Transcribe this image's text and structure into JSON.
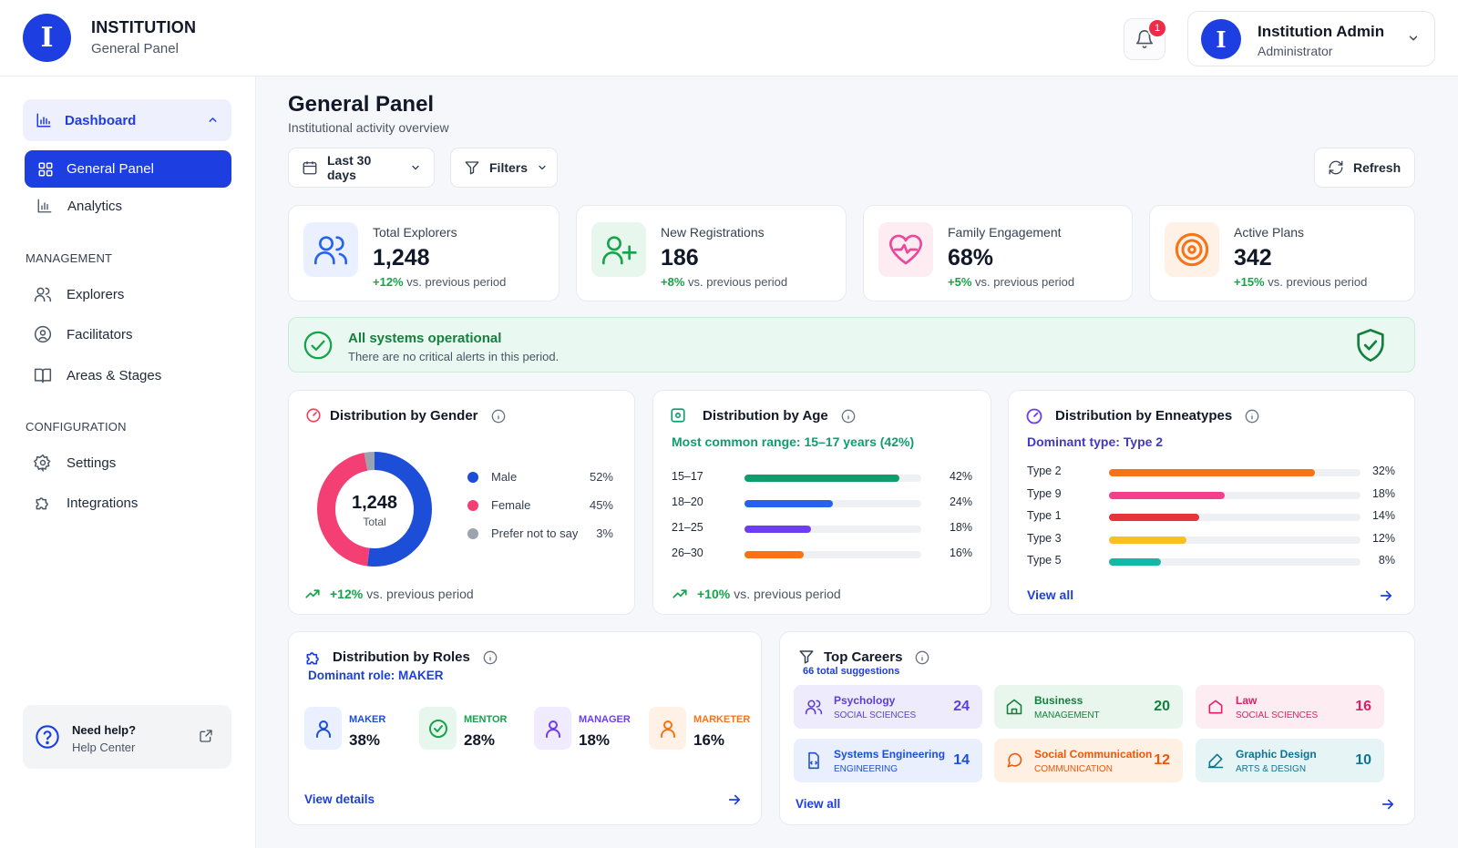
{
  "header": {
    "logo_letter": "I",
    "brand_title": "INSTITUTION",
    "brand_subtitle": "General Panel",
    "notification_count": "1",
    "user": {
      "avatar_letter": "I",
      "name": "Institution Admin",
      "role": "Administrator"
    }
  },
  "sidebar": {
    "group": {
      "label": "Dashboard"
    },
    "items": [
      {
        "label": "General Panel"
      },
      {
        "label": "Analytics"
      }
    ],
    "management_title": "MANAGEMENT",
    "management": [
      {
        "label": "Explorers"
      },
      {
        "label": "Facilitators"
      },
      {
        "label": "Areas & Stages"
      }
    ],
    "configuration_title": "CONFIGURATION",
    "configuration": [
      {
        "label": "Settings"
      },
      {
        "label": "Integrations"
      }
    ],
    "help": {
      "title": "Need help?",
      "subtitle": "Help Center"
    }
  },
  "main": {
    "title": "General Panel",
    "subtitle": "Institutional activity overview",
    "toolbar": {
      "date_range": "Last 30 days",
      "filters": "Filters",
      "refresh": "Refresh"
    },
    "kpis": [
      {
        "label": "Total Explorers",
        "value": "1,248",
        "delta": "+12%",
        "delta_text": "vs. previous period",
        "color": "#2563eb"
      },
      {
        "label": "New Registrations",
        "value": "186",
        "delta": "+8%",
        "delta_text": "vs. previous period",
        "color": "#16a34a"
      },
      {
        "label": "Family Engagement",
        "value": "68%",
        "delta": "+5%",
        "delta_text": "vs. previous period",
        "color": "#ec4899"
      },
      {
        "label": "Active Plans",
        "value": "342",
        "delta": "+15%",
        "delta_text": "vs. previous period",
        "color": "#f97316"
      }
    ],
    "alert": {
      "title": "All systems operational",
      "subtitle": "There are no critical alerts in this period."
    },
    "gender": {
      "title": "Distribution by Gender",
      "total": "1,248",
      "total_label": "Total",
      "trend": "+12%",
      "trend_text": "vs. previous period",
      "segments": [
        {
          "label": "Male",
          "value": "52%",
          "pct": 52,
          "color": "#1d4ed8"
        },
        {
          "label": "Female",
          "value": "45%",
          "pct": 45,
          "color": "#f43f75"
        },
        {
          "label": "Prefer not to say",
          "value": "3%",
          "pct": 3,
          "color": "#9ca3af"
        }
      ]
    },
    "age": {
      "title": "Distribution by Age",
      "subtitle": "Most common range: 15–17 years (42%)",
      "trend": "+10%",
      "trend_text": "vs. previous period",
      "rows": [
        {
          "label": "15–17",
          "value": "42%",
          "pct": 42,
          "color": "#0f9d6e"
        },
        {
          "label": "18–20",
          "value": "24%",
          "pct": 24,
          "color": "#2563eb"
        },
        {
          "label": "21–25",
          "value": "18%",
          "pct": 18,
          "color": "#6d3df2"
        },
        {
          "label": "26–30",
          "value": "16%",
          "pct": 16,
          "color": "#f97316"
        }
      ]
    },
    "enneatypes": {
      "title": "Distribution by Enneatypes",
      "subtitle": "Dominant type: Type 2",
      "link": "View all",
      "rows": [
        {
          "label": "Type 2",
          "value": "32%",
          "pct": 32,
          "color": "#f97316"
        },
        {
          "label": "Type 9",
          "value": "18%",
          "pct": 18,
          "color": "#f43f8e"
        },
        {
          "label": "Type 1",
          "value": "14%",
          "pct": 14,
          "color": "#e5343a"
        },
        {
          "label": "Type 3",
          "value": "12%",
          "pct": 12,
          "color": "#fbbf24"
        },
        {
          "label": "Type 5",
          "value": "8%",
          "pct": 8,
          "color": "#14b8a6"
        }
      ]
    },
    "roles": {
      "title": "Distribution by Roles",
      "subtitle": "Dominant role: MAKER",
      "link": "View details",
      "items": [
        {
          "label": "MAKER",
          "value": "38%",
          "color": "#1d4ed8",
          "bg": "#eaf0ff"
        },
        {
          "label": "MENTOR",
          "value": "28%",
          "color": "#16a34a",
          "bg": "#e8f7ee"
        },
        {
          "label": "MANAGER",
          "value": "18%",
          "color": "#6d3df2",
          "bg": "#f0ebff"
        },
        {
          "label": "MARKETER",
          "value": "16%",
          "color": "#f97316",
          "bg": "#fff1e6"
        }
      ]
    },
    "careers": {
      "title": "Top Careers",
      "subtitle": "66 total suggestions",
      "link": "View all",
      "items": [
        {
          "name": "Psychology",
          "category": "SOCIAL SCIENCES",
          "count": "24",
          "color": "#5b3fd6",
          "bg": "#eeebfd"
        },
        {
          "name": "Business",
          "category": "MANAGEMENT",
          "count": "20",
          "color": "#15803d",
          "bg": "#e8f6ee"
        },
        {
          "name": "Law",
          "category": "SOCIAL SCIENCES",
          "count": "16",
          "color": "#e11d63",
          "bg": "#fdecf2"
        },
        {
          "name": "Systems Engineering",
          "category": "ENGINEERING",
          "count": "14",
          "color": "#1d4ed8",
          "bg": "#e9effd"
        },
        {
          "name": "Social Communication",
          "category": "COMMUNICATION",
          "count": "12",
          "color": "#ea580c",
          "bg": "#fff0e4"
        },
        {
          "name": "Graphic Design",
          "category": "ARTS & DESIGN",
          "count": "10",
          "color": "#0e7490",
          "bg": "#e6f4f6"
        }
      ]
    }
  }
}
